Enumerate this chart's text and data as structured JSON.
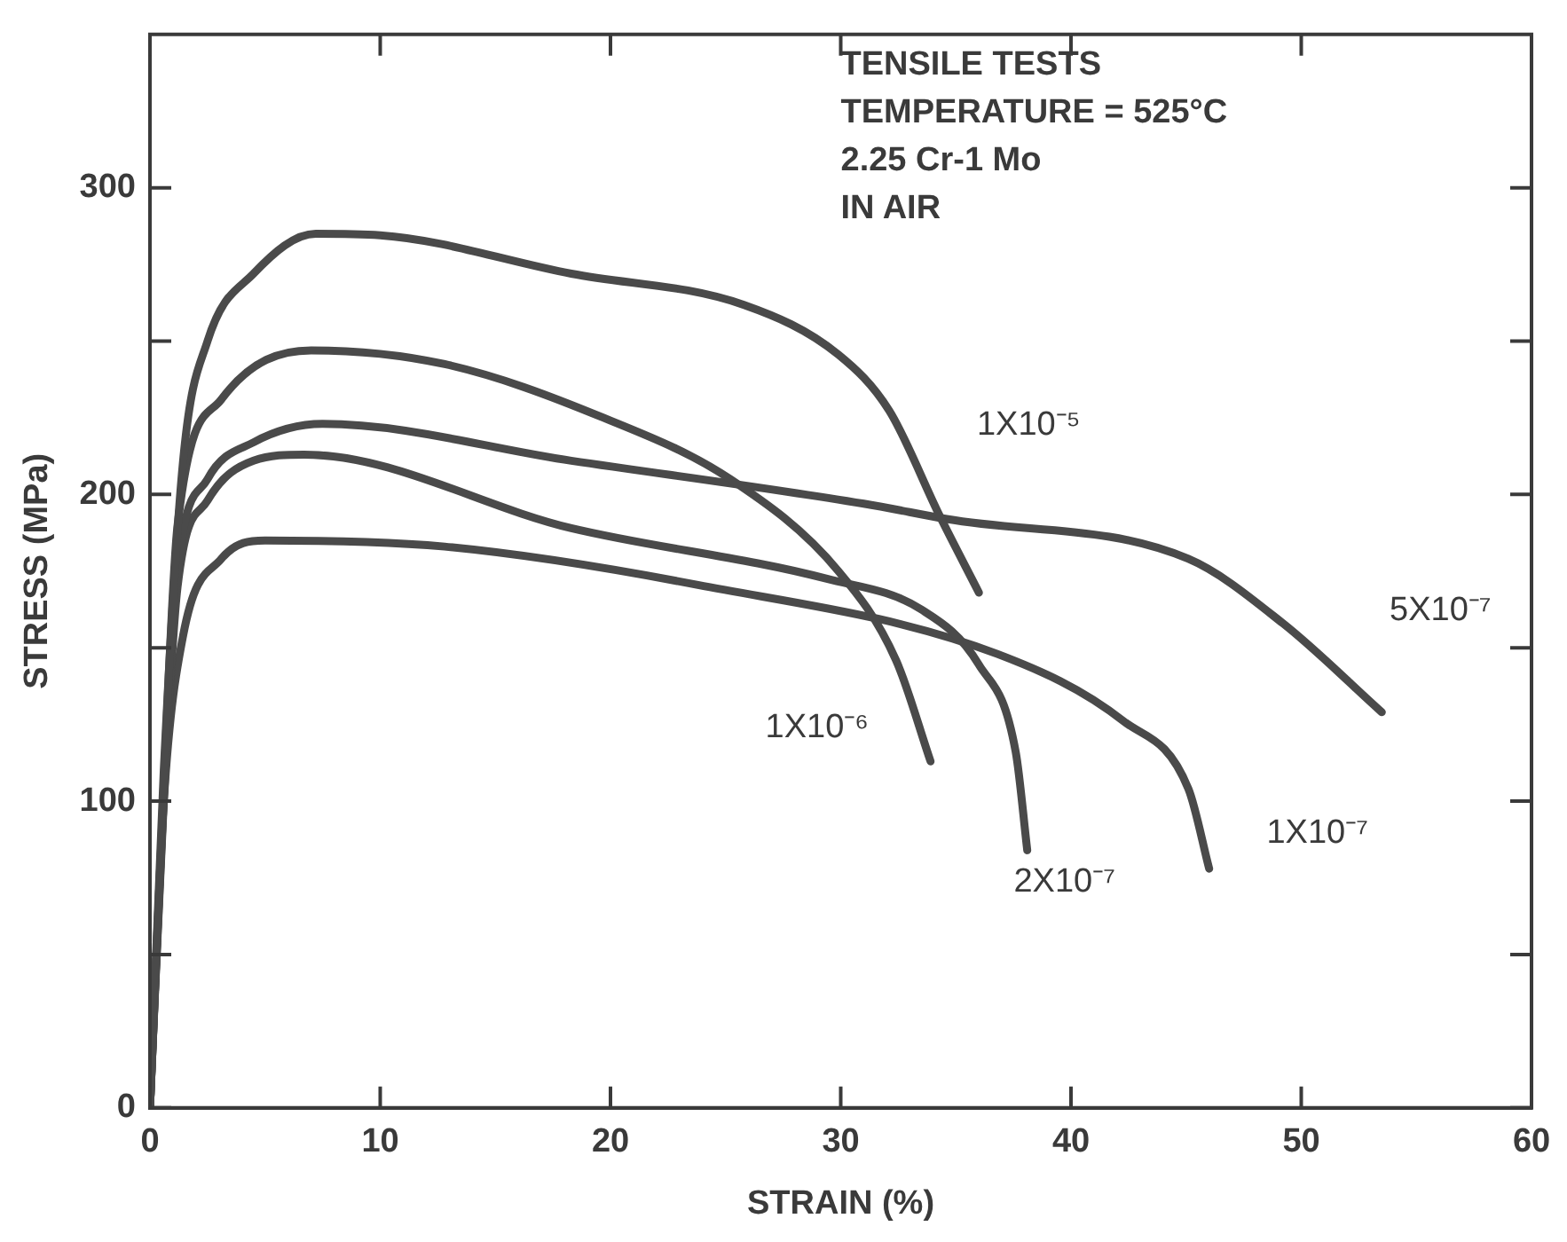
{
  "chart_data": {
    "type": "line",
    "xlabel": "STRAIN (%)",
    "ylabel": "STRESS (MPa)",
    "xlim": [
      0,
      60
    ],
    "xticks": [
      0,
      10,
      20,
      30,
      40,
      50,
      60
    ],
    "ylim": [
      0,
      350
    ],
    "yticks": [
      0,
      {
        "value": 50,
        "label": null
      },
      100,
      {
        "value": 150,
        "label": null
      },
      200,
      {
        "value": 250,
        "label": null
      },
      300
    ],
    "grid": false,
    "legend": false,
    "marker": "none",
    "line_style": "solid",
    "series": [
      {
        "name": "1X10⁻⁵",
        "color": "#4a4a4a",
        "x": [
          0,
          0.6,
          1.44,
          2.5,
          4.5,
          7.2,
          10,
          18.3,
          25.8,
          29.9,
          32.1,
          34.3,
          36
        ],
        "values": [
          0,
          110,
          211,
          250,
          272,
          285,
          284.5,
          272,
          261.8,
          245.6,
          227.4,
          193,
          168
        ]
      },
      {
        "name": "1X10⁻⁶",
        "color": "#4a4a4a",
        "x": [
          0,
          0.6,
          1.2,
          3.1,
          7,
          12.8,
          19.7,
          25.2,
          29.9,
          32.4,
          33.9
        ],
        "values": [
          0,
          105,
          190,
          231,
          247,
          242.5,
          225,
          205,
          175,
          146,
          113
        ]
      },
      {
        "name": "5X10⁻⁷",
        "color": "#4a4a4a",
        "x": [
          0,
          0.6,
          1.2,
          2.5,
          4.5,
          7.5,
          18.3,
          31,
          34.6,
          45.1,
          49.2,
          53.5
        ],
        "values": [
          0,
          102,
          175,
          205,
          217,
          223,
          211,
          197,
          192,
          179,
          158,
          129
        ]
      },
      {
        "name": "2X10⁻⁷",
        "color": "#4a4a4a",
        "x": [
          0,
          0.6,
          1.2,
          2.5,
          4.5,
          6.7,
          18.3,
          29.4,
          33.5,
          36,
          37.6,
          38.1
        ],
        "values": [
          0,
          100,
          170,
          198,
          211,
          213,
          189,
          172.5,
          162.5,
          144.5,
          116,
          84
        ]
      },
      {
        "name": "1X10⁻⁷",
        "color": "#4a4a4a",
        "x": [
          0,
          0.6,
          1.44,
          3.1,
          5,
          12.8,
          23.8,
          36.8,
          42.3,
          45.1,
          46
        ],
        "values": [
          0,
          100,
          154,
          179,
          185,
          183,
          170.5,
          148,
          126,
          104,
          78
        ]
      }
    ],
    "annotations": [
      "TENSILE TESTS",
      "TEMPERATURE = 525°C",
      "2.25 Cr-1 Mo",
      "IN AIR"
    ]
  }
}
